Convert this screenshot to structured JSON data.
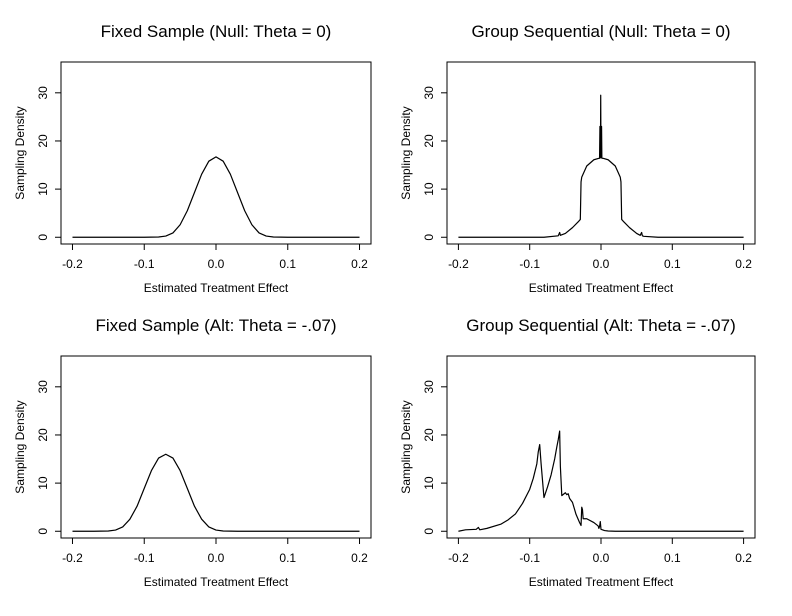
{
  "chart_data": [
    {
      "type": "line",
      "title": "Fixed Sample (Null: Theta = 0)",
      "xlabel": "Estimated Treatment Effect",
      "ylabel": "Sampling Density",
      "xlim": [
        -0.2,
        0.2
      ],
      "ylim": [
        0,
        35
      ],
      "xticks": [
        -0.2,
        -0.1,
        0.0,
        0.1,
        0.2
      ],
      "xtick_labels": [
        "-0.2",
        "-0.1",
        "0.0",
        "0.1",
        "0.2"
      ],
      "yticks": [
        0,
        10,
        20,
        30
      ],
      "ytick_labels": [
        "0",
        "10",
        "20",
        "30"
      ],
      "series": [
        {
          "name": "density",
          "x": [
            -0.2,
            -0.1,
            -0.08,
            -0.07,
            -0.06,
            -0.05,
            -0.04,
            -0.03,
            -0.02,
            -0.01,
            0.0,
            0.01,
            0.02,
            0.03,
            0.04,
            0.05,
            0.06,
            0.07,
            0.08,
            0.1,
            0.2
          ],
          "y": [
            0,
            0,
            0.05,
            0.25,
            0.9,
            2.6,
            5.5,
            9.3,
            13.1,
            15.8,
            16.7,
            15.8,
            13.1,
            9.3,
            5.5,
            2.6,
            0.9,
            0.25,
            0.05,
            0,
            0
          ]
        }
      ]
    },
    {
      "type": "line",
      "title": "Group Sequential (Null: Theta = 0)",
      "xlabel": "Estimated Treatment Effect",
      "ylabel": "Sampling Density",
      "xlim": [
        -0.2,
        0.2
      ],
      "ylim": [
        0,
        35
      ],
      "xticks": [
        -0.2,
        -0.1,
        0.0,
        0.1,
        0.2
      ],
      "xtick_labels": [
        "-0.2",
        "-0.1",
        "0.0",
        "0.1",
        "0.2"
      ],
      "yticks": [
        0,
        10,
        20,
        30
      ],
      "ytick_labels": [
        "0",
        "10",
        "20",
        "30"
      ],
      "series": [
        {
          "name": "density",
          "x": [
            -0.2,
            -0.08,
            -0.06,
            -0.058,
            -0.057,
            -0.05,
            -0.04,
            -0.032,
            -0.029,
            -0.028,
            -0.027,
            -0.02,
            -0.01,
            -0.003,
            -0.002,
            -0.0015,
            -0.0012,
            -0.0008,
            -0.0004,
            0.0,
            0.0004,
            0.0008,
            0.0012,
            0.0015,
            0.002,
            0.003,
            0.01,
            0.02,
            0.027,
            0.028,
            0.029,
            0.032,
            0.04,
            0.05,
            0.055,
            0.057,
            0.058,
            0.06,
            0.08,
            0.2
          ],
          "y": [
            0,
            0,
            0.3,
            1.0,
            0.4,
            0.8,
            2.0,
            3.2,
            3.7,
            11.5,
            12.5,
            14.8,
            16.1,
            16.4,
            16.4,
            23.0,
            16.5,
            16.5,
            29.5,
            16.5,
            16.5,
            23.0,
            16.5,
            16.4,
            16.4,
            16.4,
            16.1,
            14.8,
            12.5,
            11.5,
            3.7,
            3.2,
            2.0,
            0.8,
            0.4,
            1.0,
            0.3,
            0.2,
            0,
            0
          ]
        }
      ]
    },
    {
      "type": "line",
      "title": "Fixed Sample (Alt: Theta = -.07)",
      "xlabel": "Estimated Treatment Effect",
      "ylabel": "Sampling Density",
      "xlim": [
        -0.2,
        0.2
      ],
      "ylim": [
        0,
        35
      ],
      "xticks": [
        -0.2,
        -0.1,
        0.0,
        0.1,
        0.2
      ],
      "xtick_labels": [
        "-0.2",
        "-0.1",
        "0.0",
        "0.1",
        "0.2"
      ],
      "yticks": [
        0,
        10,
        20,
        30
      ],
      "ytick_labels": [
        "0",
        "10",
        "20",
        "30"
      ],
      "series": [
        {
          "name": "density",
          "x": [
            -0.2,
            -0.17,
            -0.15,
            -0.14,
            -0.13,
            -0.12,
            -0.11,
            -0.1,
            -0.09,
            -0.08,
            -0.07,
            -0.06,
            -0.05,
            -0.04,
            -0.03,
            -0.02,
            -0.01,
            0.0,
            0.01,
            0.03,
            0.2
          ],
          "y": [
            0,
            0,
            0.05,
            0.25,
            0.9,
            2.5,
            5.2,
            8.9,
            12.6,
            15.2,
            16.0,
            15.2,
            12.6,
            8.9,
            5.2,
            2.5,
            0.9,
            0.25,
            0.05,
            0,
            0
          ]
        }
      ]
    },
    {
      "type": "line",
      "title": "Group Sequential (Alt: Theta = -.07)",
      "xlabel": "Estimated Treatment Effect",
      "ylabel": "Sampling Density",
      "xlim": [
        -0.2,
        0.2
      ],
      "ylim": [
        0,
        35
      ],
      "xticks": [
        -0.2,
        -0.1,
        0.0,
        0.1,
        0.2
      ],
      "xtick_labels": [
        "-0.2",
        "-0.1",
        "0.0",
        "0.1",
        "0.2"
      ],
      "yticks": [
        0,
        10,
        20,
        30
      ],
      "ytick_labels": [
        "0",
        "10",
        "20",
        "30"
      ],
      "series": [
        {
          "name": "density",
          "x": [
            -0.2,
            -0.19,
            -0.175,
            -0.172,
            -0.17,
            -0.16,
            -0.14,
            -0.13,
            -0.12,
            -0.11,
            -0.1,
            -0.095,
            -0.09,
            -0.088,
            -0.086,
            -0.084,
            -0.08,
            -0.075,
            -0.07,
            -0.065,
            -0.062,
            -0.06,
            -0.058,
            -0.057,
            -0.055,
            -0.05,
            -0.048,
            -0.046,
            -0.044,
            -0.04,
            -0.035,
            -0.03,
            -0.028,
            -0.027,
            -0.026,
            -0.025,
            -0.02,
            -0.01,
            -0.004,
            -0.003,
            -0.002,
            -0.001,
            0.0,
            0.005,
            0.01,
            0.02,
            0.2
          ],
          "y": [
            0,
            0.3,
            0.4,
            0.8,
            0.3,
            0.6,
            1.5,
            2.4,
            3.6,
            5.8,
            8.7,
            11.0,
            14.0,
            16.5,
            18.0,
            14.0,
            7.0,
            9.2,
            11.7,
            15.0,
            17.5,
            19.0,
            20.8,
            13.5,
            7.4,
            8.0,
            7.6,
            7.8,
            6.8,
            6.0,
            3.5,
            1.8,
            1.2,
            5.0,
            4.5,
            2.6,
            2.6,
            1.8,
            1.1,
            0.6,
            1.0,
            2.0,
            0.4,
            0.15,
            0.05,
            0,
            0
          ]
        }
      ]
    }
  ]
}
